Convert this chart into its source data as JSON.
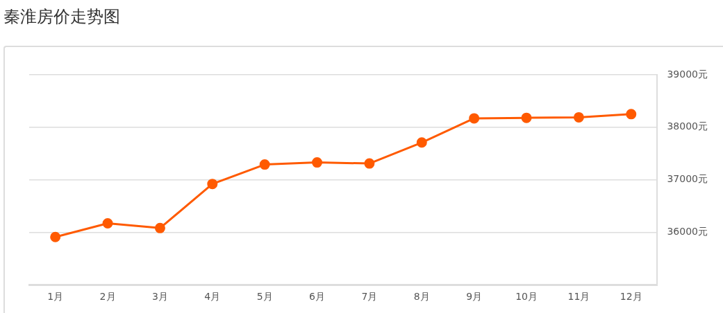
{
  "chart_data": {
    "type": "line",
    "title": "秦淮房价走势图",
    "categories": [
      "1月",
      "2月",
      "3月",
      "4月",
      "5月",
      "6月",
      "7月",
      "8月",
      "9月",
      "10月",
      "11月",
      "12月"
    ],
    "series": [
      {
        "color": "#ff5a00",
        "values": [
          35910,
          36170,
          36080,
          36920,
          37290,
          37330,
          37310,
          37710,
          38170,
          38180,
          38190,
          38250
        ]
      }
    ],
    "ylim": [
      35000,
      39000
    ],
    "yticks": [
      {
        "value": 36000,
        "label": "36000元"
      },
      {
        "value": 37000,
        "label": "37000元"
      },
      {
        "value": 38000,
        "label": "38000元"
      },
      {
        "value": 39000,
        "label": "39000元"
      }
    ],
    "grid": "y",
    "legend": false,
    "marker": "circle",
    "line_style": "solid"
  }
}
